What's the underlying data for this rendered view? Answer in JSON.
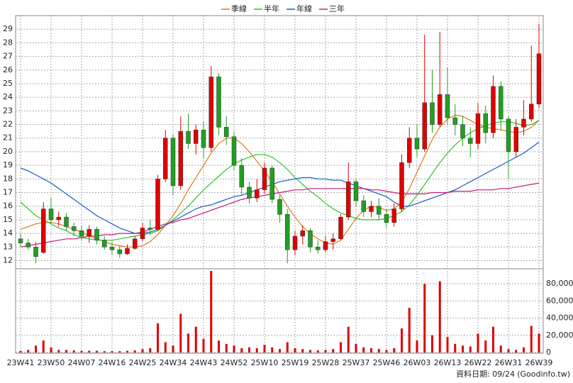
{
  "chart_data": {
    "type": "candlestick",
    "categories": [
      "23W41",
      null,
      null,
      null,
      "23W50",
      null,
      null,
      null,
      "24W07",
      null,
      null,
      null,
      "24W16",
      null,
      null,
      null,
      "24W25",
      null,
      null,
      null,
      "24W34",
      null,
      null,
      null,
      "24W43",
      null,
      null,
      null,
      "24W52",
      null,
      null,
      null,
      "25W10",
      null,
      null,
      null,
      "25W19",
      null,
      null,
      null,
      "25W28",
      null,
      null,
      null,
      "25W37",
      null,
      null,
      null,
      "25W46",
      null,
      null,
      null,
      "26W03",
      null,
      null,
      null,
      "26W13",
      null,
      null,
      null,
      "26W22",
      null,
      null,
      null,
      "26W31",
      null,
      null,
      null,
      "26W39"
    ],
    "ohlc": [
      [
        13.6,
        14.0,
        13.0,
        13.3
      ],
      [
        13.3,
        13.6,
        12.8,
        13.0
      ],
      [
        13.0,
        13.4,
        11.8,
        12.3
      ],
      [
        12.6,
        16.3,
        12.5,
        15.8
      ],
      [
        15.8,
        16.6,
        14.7,
        15.0
      ],
      [
        15.0,
        15.6,
        14.5,
        15.2
      ],
      [
        15.2,
        15.5,
        14.2,
        14.5
      ],
      [
        14.5,
        14.8,
        13.8,
        14.2
      ],
      [
        14.2,
        14.6,
        13.5,
        13.8
      ],
      [
        13.8,
        14.6,
        13.3,
        14.3
      ],
      [
        14.3,
        14.5,
        13.2,
        13.5
      ],
      [
        13.5,
        13.8,
        12.8,
        13.0
      ],
      [
        13.0,
        13.4,
        12.4,
        12.8
      ],
      [
        12.8,
        13.1,
        12.2,
        12.5
      ],
      [
        12.5,
        13.2,
        12.4,
        12.9
      ],
      [
        12.9,
        13.8,
        12.8,
        13.6
      ],
      [
        13.6,
        14.8,
        13.4,
        14.4
      ],
      [
        14.4,
        15.0,
        13.9,
        14.3
      ],
      [
        14.3,
        18.3,
        14.2,
        18.0
      ],
      [
        18.0,
        21.6,
        17.8,
        21.0
      ],
      [
        21.0,
        21.3,
        16.8,
        17.5
      ],
      [
        17.5,
        22.6,
        17.2,
        21.5
      ],
      [
        21.5,
        22.8,
        20.2,
        20.6
      ],
      [
        20.6,
        22.0,
        19.8,
        21.6
      ],
      [
        21.6,
        22.2,
        19.5,
        20.3
      ],
      [
        20.3,
        26.3,
        20.0,
        25.5
      ],
      [
        25.5,
        25.8,
        21.2,
        21.8
      ],
      [
        21.8,
        22.6,
        20.5,
        21.1
      ],
      [
        21.1,
        21.5,
        18.6,
        19.0
      ],
      [
        19.0,
        19.5,
        16.8,
        17.4
      ],
      [
        17.4,
        17.8,
        16.2,
        16.6
      ],
      [
        16.6,
        18.0,
        16.3,
        17.2
      ],
      [
        17.2,
        19.2,
        16.9,
        18.8
      ],
      [
        18.8,
        19.0,
        16.2,
        16.5
      ],
      [
        16.5,
        16.8,
        14.8,
        15.4
      ],
      [
        15.4,
        15.8,
        11.8,
        12.8
      ],
      [
        12.8,
        14.2,
        12.4,
        13.8
      ],
      [
        13.8,
        14.6,
        13.2,
        14.2
      ],
      [
        14.2,
        14.4,
        12.6,
        13.0
      ],
      [
        13.0,
        13.5,
        12.5,
        12.8
      ],
      [
        12.8,
        13.8,
        12.6,
        13.4
      ],
      [
        13.4,
        14.0,
        12.8,
        13.6
      ],
      [
        13.6,
        15.4,
        13.5,
        15.2
      ],
      [
        15.2,
        19.2,
        15.0,
        17.8
      ],
      [
        17.8,
        18.0,
        16.0,
        16.4
      ],
      [
        16.4,
        16.8,
        15.2,
        15.6
      ],
      [
        15.6,
        16.4,
        15.2,
        16.0
      ],
      [
        16.0,
        16.6,
        15.0,
        15.4
      ],
      [
        15.4,
        15.8,
        14.4,
        14.8
      ],
      [
        14.8,
        16.2,
        14.5,
        15.8
      ],
      [
        15.8,
        19.8,
        15.6,
        19.2
      ],
      [
        19.2,
        21.8,
        18.8,
        21.0
      ],
      [
        21.0,
        22.0,
        19.6,
        20.2
      ],
      [
        20.2,
        28.6,
        20.0,
        23.6
      ],
      [
        23.6,
        26.0,
        21.4,
        22.0
      ],
      [
        22.0,
        28.8,
        21.8,
        24.2
      ],
      [
        24.2,
        26.2,
        22.0,
        22.5
      ],
      [
        22.5,
        23.5,
        21.2,
        22.0
      ],
      [
        22.0,
        22.6,
        20.4,
        21.0
      ],
      [
        21.0,
        21.8,
        19.6,
        20.6
      ],
      [
        20.6,
        23.6,
        20.2,
        22.8
      ],
      [
        22.8,
        23.4,
        20.6,
        21.4
      ],
      [
        21.4,
        25.6,
        21.0,
        24.8
      ],
      [
        24.8,
        25.2,
        21.6,
        22.4
      ],
      [
        22.4,
        22.6,
        18.0,
        20.0
      ],
      [
        20.0,
        22.4,
        19.6,
        21.8
      ],
      [
        21.8,
        23.8,
        21.2,
        22.4
      ],
      [
        22.4,
        27.8,
        22.2,
        23.5
      ],
      [
        23.5,
        29.4,
        23.2,
        27.2
      ]
    ],
    "up_color": "#e00000",
    "down_color": "#20a020",
    "series": [
      {
        "name": "季線",
        "color": "#e07b1a",
        "values": [
          14.3,
          14.5,
          14.7,
          14.8,
          14.8,
          14.7,
          14.5,
          14.3,
          14.1,
          13.8,
          13.6,
          13.4,
          13.2,
          13.1,
          13.0,
          13.0,
          13.1,
          13.4,
          13.9,
          14.6,
          15.3,
          16.2,
          17.2,
          18.1,
          19.0,
          19.9,
          20.6,
          21.0,
          21.0,
          20.6,
          20.0,
          19.3,
          18.6,
          17.8,
          16.9,
          16.0,
          15.2,
          14.5,
          14.0,
          13.6,
          13.3,
          13.2,
          13.5,
          14.3,
          15.1,
          15.7,
          16.0,
          15.9,
          15.7,
          15.8,
          16.3,
          17.3,
          18.5,
          19.7,
          20.9,
          21.8,
          22.4,
          22.7,
          22.6,
          22.3,
          22.0,
          21.8,
          21.7,
          21.6,
          21.5,
          21.4,
          21.5,
          21.8,
          22.3
        ]
      },
      {
        "name": "半年",
        "color": "#2cc52c",
        "values": [
          16.3,
          15.8,
          15.3,
          15.0,
          14.7,
          14.4,
          14.2,
          13.9,
          13.7,
          13.6,
          13.5,
          13.5,
          13.5,
          13.6,
          13.7,
          13.8,
          13.9,
          14.0,
          14.2,
          14.6,
          15.0,
          15.5,
          16.0,
          16.6,
          17.2,
          17.7,
          18.2,
          18.7,
          19.1,
          19.4,
          19.6,
          19.8,
          19.8,
          19.6,
          19.2,
          18.7,
          18.1,
          17.6,
          17.1,
          16.7,
          16.2,
          15.8,
          15.5,
          15.3,
          15.1,
          15.0,
          15.0,
          15.0,
          15.1,
          15.3,
          15.6,
          16.1,
          16.8,
          17.6,
          18.4,
          19.2,
          19.9,
          20.5,
          21.0,
          21.4,
          21.7,
          21.9,
          22.1,
          22.2,
          22.2,
          22.1,
          21.9,
          22.0,
          22.3
        ]
      },
      {
        "name": "年線",
        "color": "#1a5ccc",
        "values": [
          18.8,
          18.6,
          18.3,
          18.0,
          17.7,
          17.3,
          16.9,
          16.5,
          16.1,
          15.7,
          15.3,
          15.0,
          14.7,
          14.4,
          14.2,
          14.0,
          14.0,
          14.1,
          14.3,
          14.6,
          14.9,
          15.2,
          15.5,
          15.8,
          16.0,
          16.1,
          16.3,
          16.5,
          16.7,
          16.8,
          17.0,
          17.2,
          17.4,
          17.6,
          17.8,
          17.9,
          18.0,
          18.1,
          18.1,
          18.0,
          18.0,
          17.9,
          17.9,
          17.7,
          17.5,
          17.3,
          17.1,
          16.9,
          16.7,
          16.3,
          16.0,
          16.0,
          16.2,
          16.4,
          16.6,
          16.8,
          17.0,
          17.2,
          17.5,
          17.8,
          18.1,
          18.4,
          18.7,
          19.0,
          19.3,
          19.6,
          19.9,
          20.3,
          20.7
        ]
      },
      {
        "name": "三年",
        "color": "#cc1a7a",
        "values": [
          13.0,
          13.1,
          13.2,
          13.3,
          13.4,
          13.5,
          13.6,
          13.6,
          13.7,
          13.8,
          13.8,
          13.9,
          13.9,
          14.0,
          14.0,
          14.0,
          14.1,
          14.3,
          14.5,
          14.7,
          14.8,
          15.0,
          15.1,
          15.3,
          15.5,
          15.7,
          15.9,
          16.1,
          16.3,
          16.5,
          16.6,
          16.7,
          16.8,
          16.9,
          17.0,
          17.1,
          17.2,
          17.2,
          17.3,
          17.3,
          17.3,
          17.3,
          17.3,
          17.3,
          17.3,
          17.3,
          17.2,
          17.2,
          17.1,
          17.0,
          16.9,
          16.9,
          16.9,
          16.9,
          17.0,
          17.0,
          17.0,
          17.1,
          17.1,
          17.1,
          17.2,
          17.2,
          17.2,
          17.3,
          17.3,
          17.4,
          17.5,
          17.6,
          17.7
        ]
      }
    ],
    "ylim": [
      11.4,
      30
    ],
    "yticks": [
      12,
      13,
      14,
      15,
      16,
      17,
      18,
      19,
      20,
      21,
      22,
      23,
      24,
      25,
      26,
      27,
      28,
      29
    ],
    "grid": true,
    "volume": {
      "color": "#e00000",
      "values": [
        2000,
        3000,
        8000,
        14000,
        6000,
        3000,
        3000,
        2500,
        2000,
        2000,
        2000,
        1500,
        1500,
        1500,
        2000,
        2500,
        4000,
        5000,
        34000,
        12000,
        8000,
        45000,
        22000,
        30000,
        16000,
        95000,
        14000,
        10000,
        8000,
        5000,
        6000,
        5000,
        9000,
        6000,
        4000,
        12000,
        5000,
        4000,
        3000,
        2500,
        3000,
        4000,
        12000,
        30000,
        10000,
        6000,
        5000,
        4000,
        3000,
        5000,
        28000,
        52000,
        14000,
        80000,
        20000,
        83000,
        18000,
        10000,
        8000,
        7000,
        22000,
        14000,
        30000,
        8000,
        4000,
        3000,
        6000,
        31000,
        22000
      ],
      "ylim": [
        0,
        97500
      ],
      "yticks": [
        0,
        {
          "value": 20000,
          "label": "20,000"
        },
        {
          "value": 40000,
          "label": "40,000"
        },
        {
          "value": 60000,
          "label": "60,000"
        },
        {
          "value": 80000,
          "label": "80,000"
        }
      ]
    },
    "footer": "資料日期: 09/24",
    "source": "(Goodinfo.tw)"
  }
}
